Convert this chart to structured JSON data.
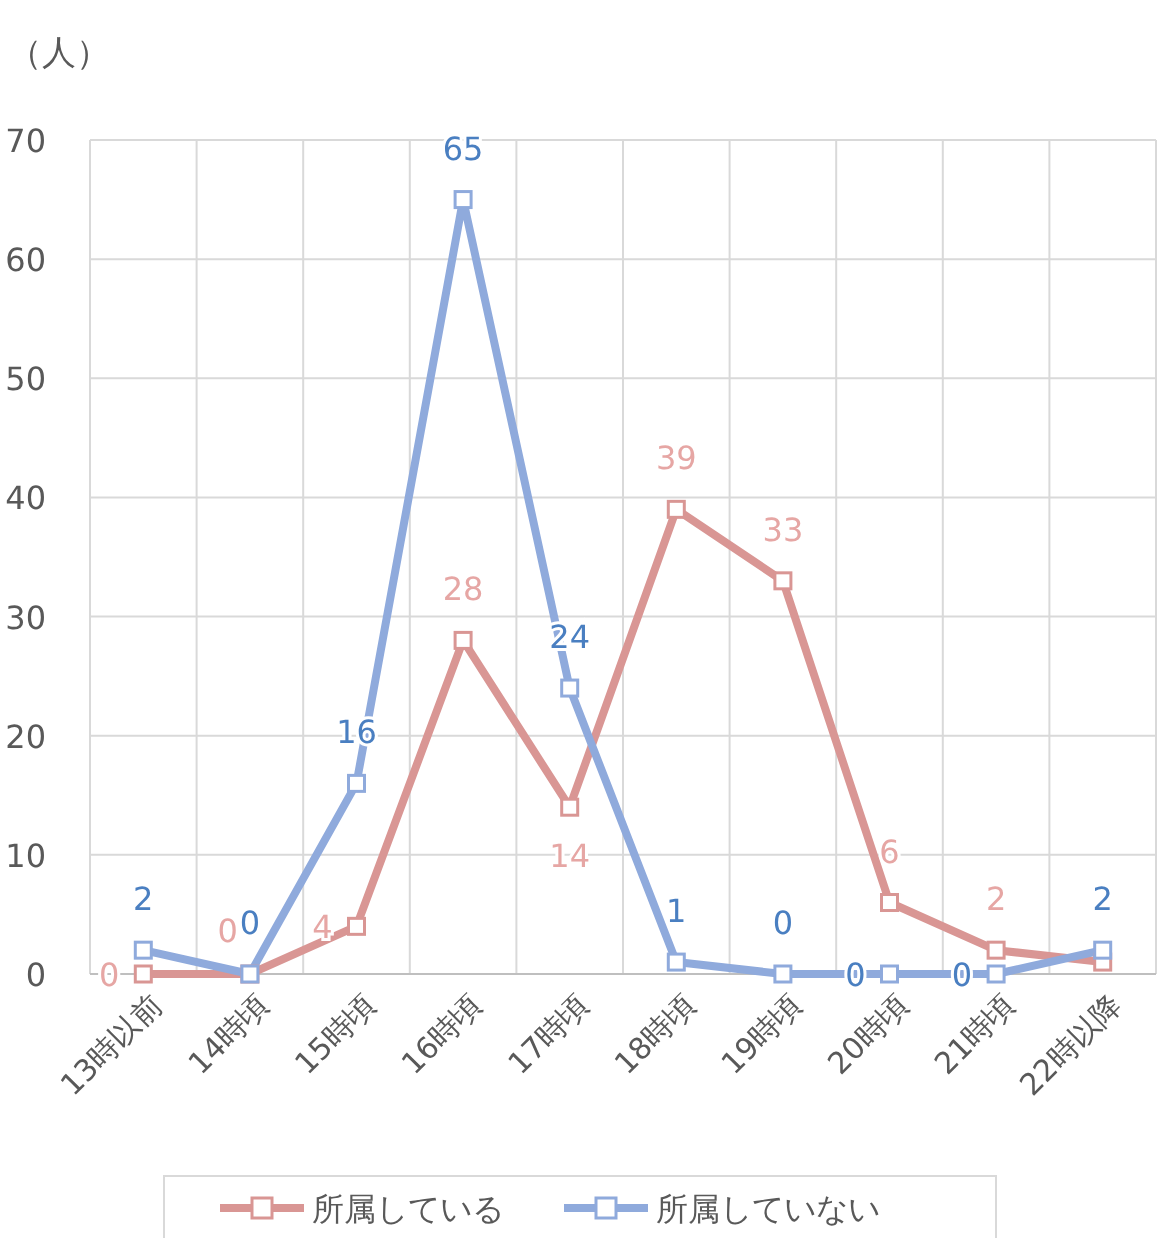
{
  "chart_data": {
    "type": "line",
    "ylabel": "（人）",
    "categories": [
      "13時以前",
      "14時頃",
      "15時頃",
      "16時頃",
      "17時頃",
      "18時頃",
      "19時頃",
      "20時頃",
      "21時頃",
      "22時以降"
    ],
    "series": [
      {
        "name": "所属している",
        "color": "#d99694",
        "values": [
          0,
          0,
          4,
          28,
          14,
          39,
          33,
          6,
          2,
          1
        ],
        "value_labels": [
          "0",
          "0",
          "4",
          "28",
          "14",
          "39",
          "33",
          "6",
          "2",
          null
        ]
      },
      {
        "name": "所属していない",
        "color": "#8faadc",
        "values": [
          2,
          0,
          16,
          65,
          24,
          1,
          0,
          0,
          0,
          2
        ],
        "value_labels": [
          "2",
          "0",
          "16",
          "65",
          "24",
          "1",
          "0",
          "0",
          "0",
          "2"
        ]
      }
    ],
    "ylim": [
      0,
      70
    ],
    "yticks": [
      0,
      10,
      20,
      30,
      40,
      50,
      60,
      70
    ],
    "grid": true,
    "legend": "bottom",
    "marker": "square",
    "line_style": "solid"
  }
}
